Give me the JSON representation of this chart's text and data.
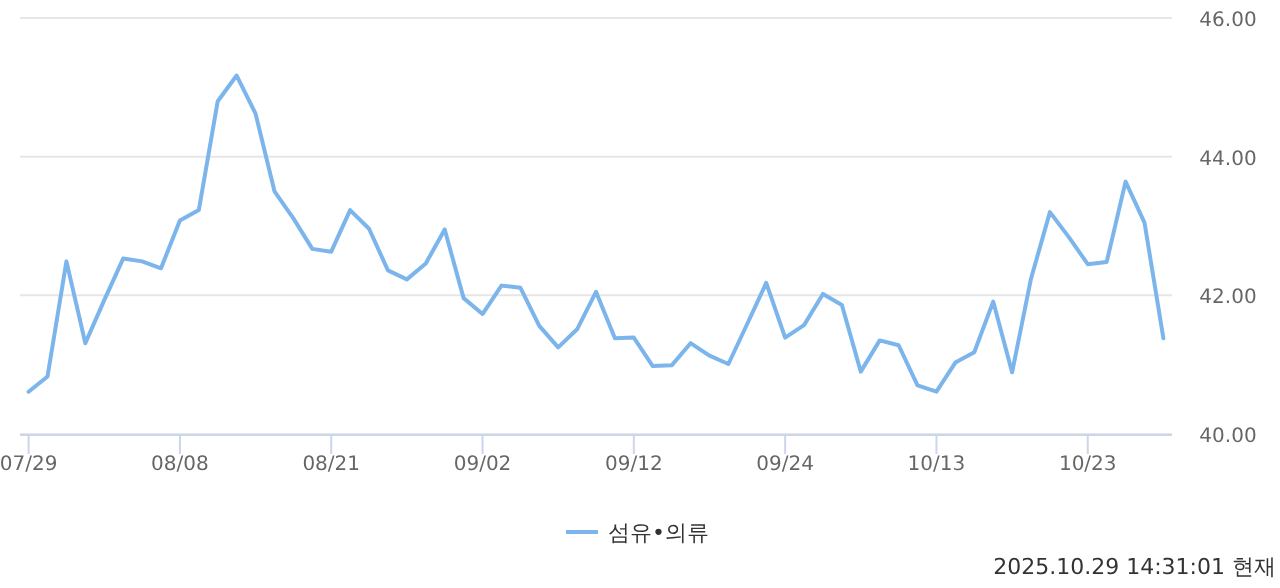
{
  "chart_data": {
    "type": "line",
    "categories": [
      "07/29",
      null,
      null,
      null,
      null,
      null,
      null,
      null,
      "08/08",
      null,
      null,
      null,
      null,
      null,
      null,
      null,
      "08/21",
      null,
      null,
      null,
      null,
      null,
      null,
      null,
      "09/02",
      null,
      null,
      null,
      null,
      null,
      null,
      null,
      "09/12",
      null,
      null,
      null,
      null,
      null,
      null,
      null,
      "09/24",
      null,
      null,
      null,
      null,
      null,
      null,
      null,
      "10/13",
      null,
      null,
      null,
      null,
      null,
      null,
      null,
      "10/23",
      null,
      null,
      null,
      null
    ],
    "series": [
      {
        "name": "섬유•의류",
        "color": "#7cb5ec",
        "values": [
          40.61,
          40.83,
          42.49,
          41.31,
          41.93,
          42.53,
          42.49,
          42.39,
          43.08,
          43.23,
          44.8,
          45.17,
          44.62,
          43.5,
          43.11,
          42.67,
          42.63,
          43.23,
          42.96,
          42.36,
          42.23,
          42.46,
          42.95,
          41.96,
          41.73,
          42.14,
          42.11,
          41.56,
          41.25,
          41.51,
          42.05,
          41.38,
          41.39,
          40.98,
          40.99,
          41.31,
          41.13,
          41.01,
          41.59,
          42.18,
          41.39,
          41.57,
          42.02,
          41.86,
          40.9,
          41.35,
          41.28,
          40.7,
          40.61,
          41.03,
          41.18,
          41.91,
          40.89,
          42.24,
          43.2,
          42.84,
          42.45,
          42.48,
          43.64,
          43.05,
          41.38
        ]
      }
    ],
    "ylim": [
      40,
      46
    ],
    "yticks": [
      {
        "value": 40,
        "label": "40.00"
      },
      {
        "value": 42,
        "label": "42.00"
      },
      {
        "value": 44,
        "label": "44.00"
      },
      {
        "value": 46,
        "label": "46.00"
      }
    ],
    "grid": "y",
    "legend": "bottom",
    "marker": "none",
    "line_style": "solid",
    "annotations": [
      "2025.10.29 14:31:01 현재"
    ]
  }
}
